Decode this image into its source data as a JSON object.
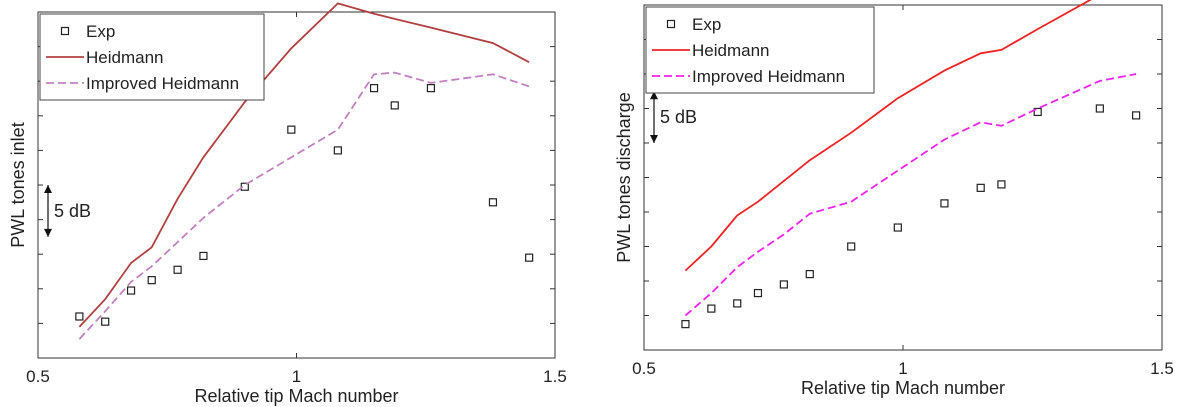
{
  "chart_data": [
    {
      "type": "line",
      "xlabel": "Relative tip Mach number",
      "ylabel": "PWL tones inlet",
      "xlim": [
        0.5,
        1.5
      ],
      "x_ticks": [
        0.5,
        1,
        1.5
      ],
      "x_tick_labels": [
        "0.5",
        "1",
        "1.5"
      ],
      "ylim": [
        0,
        10
      ],
      "y_tick_values": [
        1,
        2,
        3,
        4,
        5,
        6,
        7,
        8,
        9
      ],
      "legend_position": "top-left",
      "annotation": {
        "text": "5 dB",
        "y_from": 3.5,
        "y_to": 5.0
      },
      "series": [
        {
          "name": "Exp",
          "style": "markers",
          "color": "#222222",
          "x": [
            0.58,
            0.63,
            0.68,
            0.72,
            0.77,
            0.82,
            0.9,
            0.99,
            1.08,
            1.15,
            1.19,
            1.26,
            1.38,
            1.45
          ],
          "y": [
            1.2,
            1.05,
            1.95,
            2.25,
            2.55,
            2.95,
            4.95,
            6.6,
            6.0,
            7.8,
            7.3,
            7.8,
            4.5,
            2.9
          ]
        },
        {
          "name": "Heidmann",
          "style": "solid",
          "color": "#b04040",
          "x": [
            0.58,
            0.63,
            0.68,
            0.72,
            0.77,
            0.82,
            0.9,
            0.99,
            1.08,
            1.15,
            1.19,
            1.26,
            1.38,
            1.45
          ],
          "y": [
            0.9,
            1.7,
            2.75,
            3.2,
            4.6,
            5.8,
            7.4,
            8.95,
            10.25,
            9.95,
            9.8,
            9.55,
            9.1,
            8.55
          ]
        },
        {
          "name": "Improved Heidmann",
          "style": "dashed",
          "color": "#c080c0",
          "x": [
            0.58,
            0.63,
            0.68,
            0.72,
            0.77,
            0.82,
            0.9,
            0.99,
            1.08,
            1.15,
            1.19,
            1.26,
            1.38,
            1.45
          ],
          "y": [
            0.55,
            1.35,
            2.2,
            2.65,
            3.35,
            4.05,
            5.0,
            5.8,
            6.6,
            8.2,
            8.25,
            7.95,
            8.2,
            7.85
          ]
        }
      ]
    },
    {
      "type": "line",
      "xlabel": "Relative tip Mach number",
      "ylabel": "PWL tones discharge",
      "xlim": [
        0.5,
        1.5
      ],
      "x_ticks": [
        0.5,
        1,
        1.5
      ],
      "x_tick_labels": [
        "0.5",
        "1",
        "1.5"
      ],
      "ylim": [
        0,
        10
      ],
      "y_tick_values": [
        1,
        2,
        3,
        4,
        5,
        6,
        7,
        8,
        9
      ],
      "legend_position": "top-left",
      "annotation": {
        "text": "5 dB",
        "y_from": 6.0,
        "y_to": 7.5
      },
      "series": [
        {
          "name": "Exp",
          "style": "markers",
          "color": "#222222",
          "x": [
            0.58,
            0.63,
            0.68,
            0.72,
            0.77,
            0.82,
            0.9,
            0.99,
            1.08,
            1.15,
            1.19,
            1.26,
            1.38,
            1.45
          ],
          "y": [
            0.75,
            1.2,
            1.35,
            1.65,
            1.9,
            2.2,
            3.0,
            3.55,
            4.25,
            4.7,
            4.8,
            6.9,
            7.0,
            6.8
          ]
        },
        {
          "name": "Heidmann",
          "style": "solid",
          "color": "#ee2222",
          "x": [
            0.58,
            0.63,
            0.68,
            0.72,
            0.77,
            0.82,
            0.9,
            0.99,
            1.08,
            1.15,
            1.19,
            1.26,
            1.38,
            1.45
          ],
          "y": [
            2.3,
            3.0,
            3.9,
            4.3,
            4.9,
            5.5,
            6.3,
            7.3,
            8.1,
            8.6,
            8.7,
            9.3,
            10.3,
            10.8
          ]
        },
        {
          "name": "Improved Heidmann",
          "style": "dashed",
          "color": "#ee22ee",
          "x": [
            0.58,
            0.63,
            0.68,
            0.72,
            0.77,
            0.82,
            0.9,
            0.99,
            1.08,
            1.15,
            1.19,
            1.26,
            1.38,
            1.45
          ],
          "y": [
            1.0,
            1.65,
            2.4,
            2.85,
            3.35,
            3.95,
            4.3,
            5.2,
            6.1,
            6.6,
            6.5,
            7.0,
            7.8,
            8.0
          ]
        }
      ]
    }
  ]
}
